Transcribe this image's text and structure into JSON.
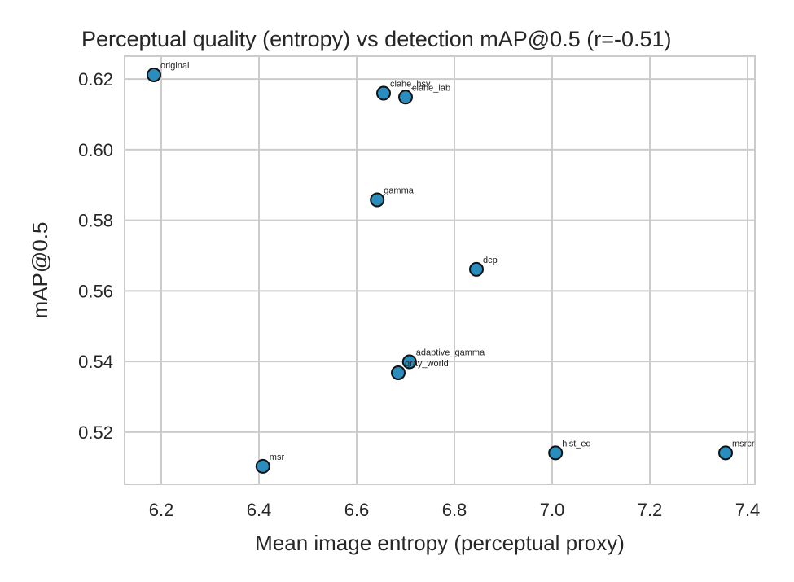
{
  "chart_data": {
    "type": "scatter",
    "title": "Perceptual quality (entropy) vs detection mAP@0.5  (r=-0.51)",
    "xlabel": "Mean image entropy (perceptual proxy)",
    "ylabel": "mAP@0.5",
    "xlim": [
      6.125,
      7.415
    ],
    "ylim": [
      0.5052,
      0.6265
    ],
    "xticks": [
      "6.2",
      "6.4",
      "6.6",
      "6.8",
      "7.0",
      "7.2",
      "7.4"
    ],
    "yticks": [
      "0.52",
      "0.54",
      "0.56",
      "0.58",
      "0.60",
      "0.62"
    ],
    "grid": true,
    "point_color": "#2b8cbe",
    "points": [
      {
        "label": "original",
        "x": 6.185,
        "y": 0.6212
      },
      {
        "label": "clahe_hsv",
        "x": 6.655,
        "y": 0.616
      },
      {
        "label": "clahe_lab",
        "x": 6.7,
        "y": 0.6149
      },
      {
        "label": "gamma",
        "x": 6.642,
        "y": 0.5858
      },
      {
        "label": "dcp",
        "x": 6.845,
        "y": 0.5661
      },
      {
        "label": "adaptive_gamma",
        "x": 6.708,
        "y": 0.5399
      },
      {
        "label": "gray_world",
        "x": 6.685,
        "y": 0.5368
      },
      {
        "label": "msr",
        "x": 6.408,
        "y": 0.5103
      },
      {
        "label": "hist_eq",
        "x": 7.007,
        "y": 0.5141
      },
      {
        "label": "msrcr",
        "x": 7.355,
        "y": 0.5141
      }
    ]
  }
}
